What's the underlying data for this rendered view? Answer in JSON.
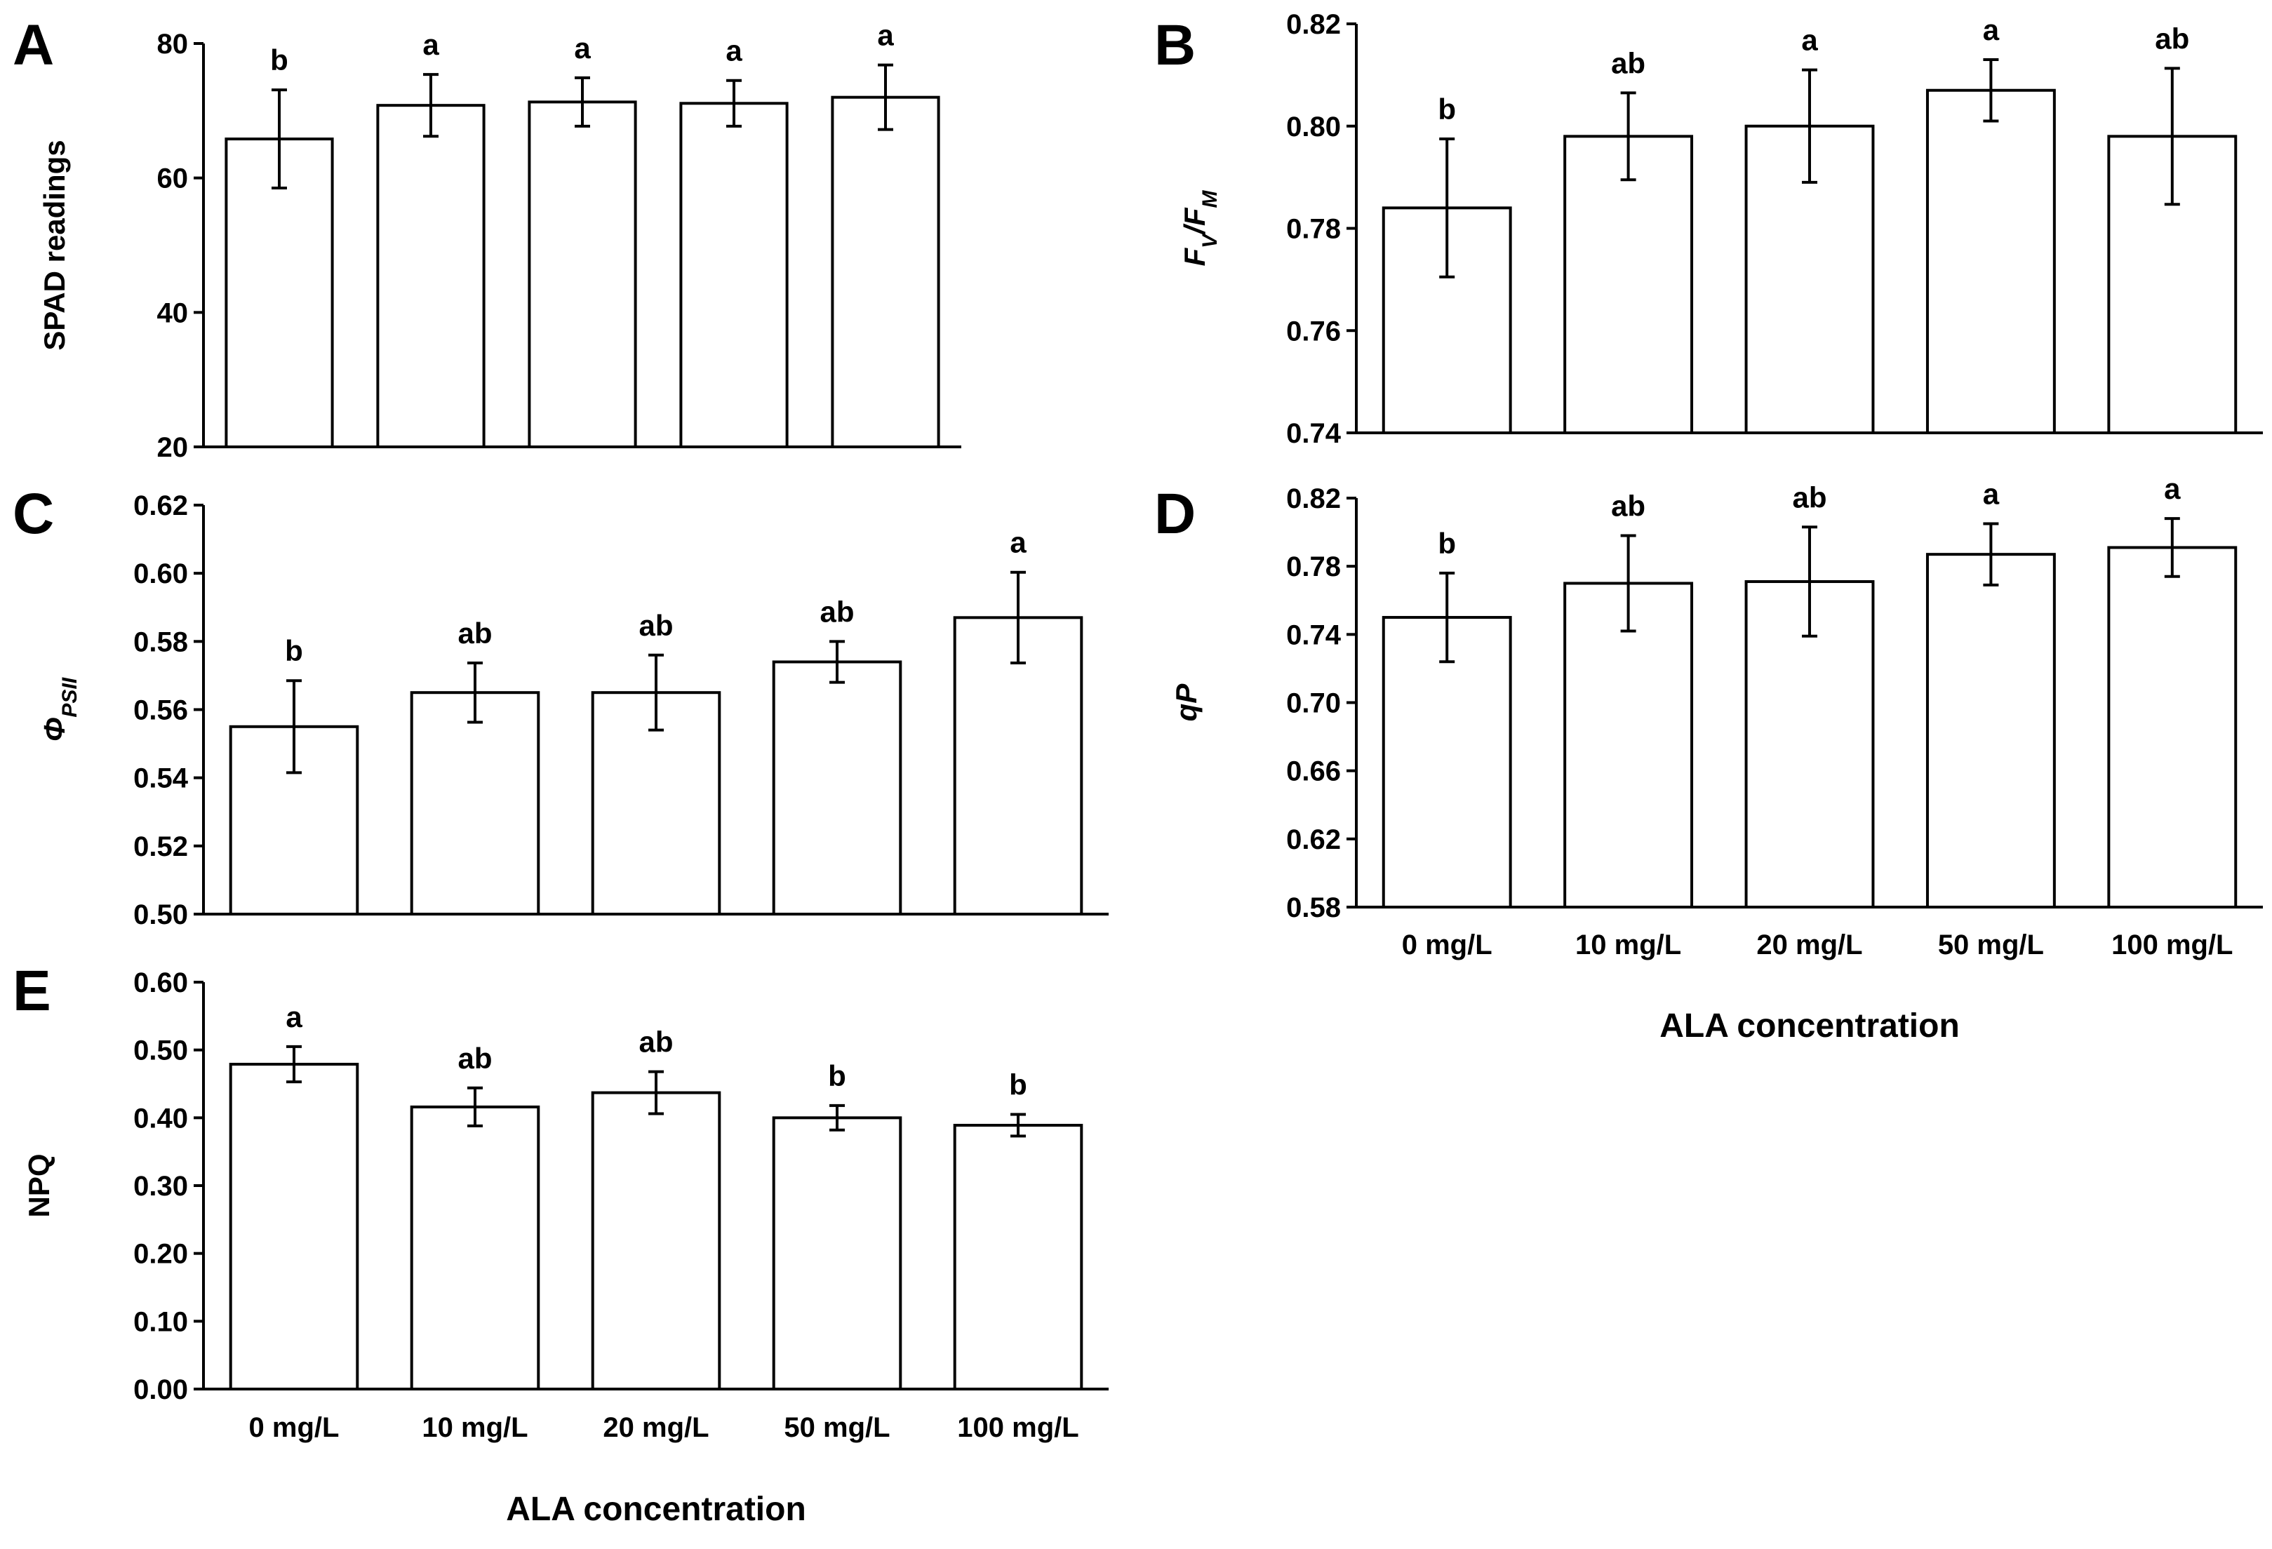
{
  "chart_data": [
    {
      "panel": "A",
      "type": "bar",
      "ylabel": "SPAD readings",
      "ylabel_parts": [],
      "categories": [
        "0 mg/L",
        "10 mg/L",
        "20 mg/L",
        "50 mg/L",
        "100 mg/L"
      ],
      "show_xticks": false,
      "xlabel": "",
      "ylim": [
        20,
        80
      ],
      "yticks": [
        "20",
        "40",
        "60",
        "80"
      ],
      "values": [
        65.8,
        70.8,
        71.3,
        71.1,
        72.0
      ],
      "errors": [
        7.3,
        4.6,
        3.6,
        3.4,
        4.8
      ],
      "significance": [
        "b",
        "a",
        "a",
        "a",
        "a"
      ]
    },
    {
      "panel": "B",
      "type": "bar",
      "ylabel": "",
      "ylabel_parts": [
        {
          "t": "F",
          "italic": true
        },
        {
          "t": "V",
          "italic": true,
          "sub": true
        },
        {
          "t": "/",
          "italic": true
        },
        {
          "t": "F",
          "italic": true
        },
        {
          "t": "M",
          "italic": true,
          "sub": true
        }
      ],
      "categories": [
        "0 mg/L",
        "10 mg/L",
        "20 mg/L",
        "50 mg/L",
        "100 mg/L"
      ],
      "show_xticks": false,
      "xlabel": "",
      "ylim": [
        0.74,
        0.82
      ],
      "yticks": [
        "0.74",
        "0.76",
        "0.78",
        "0.80",
        "0.82"
      ],
      "values": [
        0.784,
        0.798,
        0.8,
        0.807,
        0.798
      ],
      "errors": [
        0.0135,
        0.0085,
        0.011,
        0.006,
        0.0133
      ],
      "significance": [
        "b",
        "ab",
        "a",
        "a",
        "ab"
      ]
    },
    {
      "panel": "C",
      "type": "bar",
      "ylabel": "",
      "ylabel_parts": [
        {
          "t": "Φ",
          "italic": true
        },
        {
          "t": "PSII",
          "italic": true,
          "sub": true
        }
      ],
      "categories": [
        "0 mg/L",
        "10 mg/L",
        "20 mg/L",
        "50 mg/L",
        "100 mg/L"
      ],
      "show_xticks": false,
      "xlabel": "",
      "ylim": [
        0.5,
        0.62
      ],
      "yticks": [
        "0.50",
        "0.52",
        "0.54",
        "0.56",
        "0.58",
        "0.60",
        "0.62"
      ],
      "values": [
        0.555,
        0.565,
        0.565,
        0.574,
        0.587
      ],
      "errors": [
        0.0135,
        0.0087,
        0.011,
        0.006,
        0.0133
      ],
      "significance": [
        "b",
        "ab",
        "ab",
        "ab",
        "a"
      ]
    },
    {
      "panel": "D",
      "type": "bar",
      "ylabel": "",
      "ylabel_parts": [
        {
          "t": "qP",
          "italic": true
        }
      ],
      "categories": [
        "0 mg/L",
        "10 mg/L",
        "20 mg/L",
        "50 mg/L",
        "100 mg/L"
      ],
      "show_xticks": true,
      "xlabel": "ALA concentration",
      "ylim": [
        0.58,
        0.82
      ],
      "yticks": [
        "0.58",
        "0.62",
        "0.66",
        "0.70",
        "0.74",
        "0.78",
        "0.82"
      ],
      "values": [
        0.75,
        0.77,
        0.771,
        0.787,
        0.791
      ],
      "errors": [
        0.026,
        0.028,
        0.032,
        0.018,
        0.017
      ],
      "significance": [
        "b",
        "ab",
        "ab",
        "a",
        "a"
      ]
    },
    {
      "panel": "E",
      "type": "bar",
      "ylabel": "NPQ",
      "ylabel_parts": [],
      "categories": [
        "0 mg/L",
        "10 mg/L",
        "20 mg/L",
        "50 mg/L",
        "100 mg/L"
      ],
      "show_xticks": true,
      "xlabel": "ALA concentration",
      "ylim": [
        0.0,
        0.6
      ],
      "yticks": [
        "0.00",
        "0.10",
        "0.20",
        "0.30",
        "0.40",
        "0.50",
        "0.60"
      ],
      "values": [
        0.479,
        0.416,
        0.437,
        0.4,
        0.389
      ],
      "errors": [
        0.026,
        0.028,
        0.031,
        0.018,
        0.016
      ],
      "significance": [
        "a",
        "ab",
        "ab",
        "b",
        "b"
      ]
    }
  ]
}
